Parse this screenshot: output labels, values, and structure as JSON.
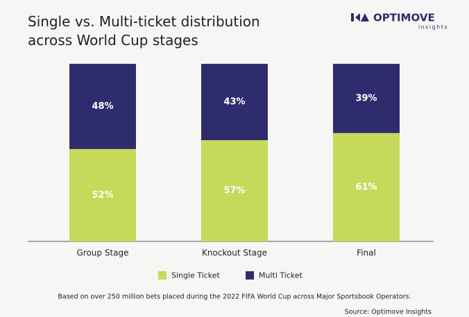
{
  "chart_data": {
    "type": "stacked_bar",
    "title": "Single vs. Multi-ticket distribution across World Cup stages",
    "brand": "OPTIMOVE",
    "brand_sub": "insights",
    "categories": [
      "Group Stage",
      "Knockout Stage",
      "Final"
    ],
    "series": [
      {
        "name": "Single Ticket",
        "color": "#c6d95b",
        "values": [
          52,
          57,
          61
        ],
        "value_labels": [
          "52%",
          "57%",
          "61%"
        ]
      },
      {
        "name": "Multi Ticket",
        "color": "#2f2c6e",
        "values": [
          48,
          43,
          39
        ],
        "value_labels": [
          "48%",
          "43%",
          "39%"
        ]
      }
    ],
    "note": "Based on over 250 million bets placed during the 2022 FIFA World Cup across Major Sportsbook Operators.",
    "source": "Source: Optimove Insights"
  }
}
